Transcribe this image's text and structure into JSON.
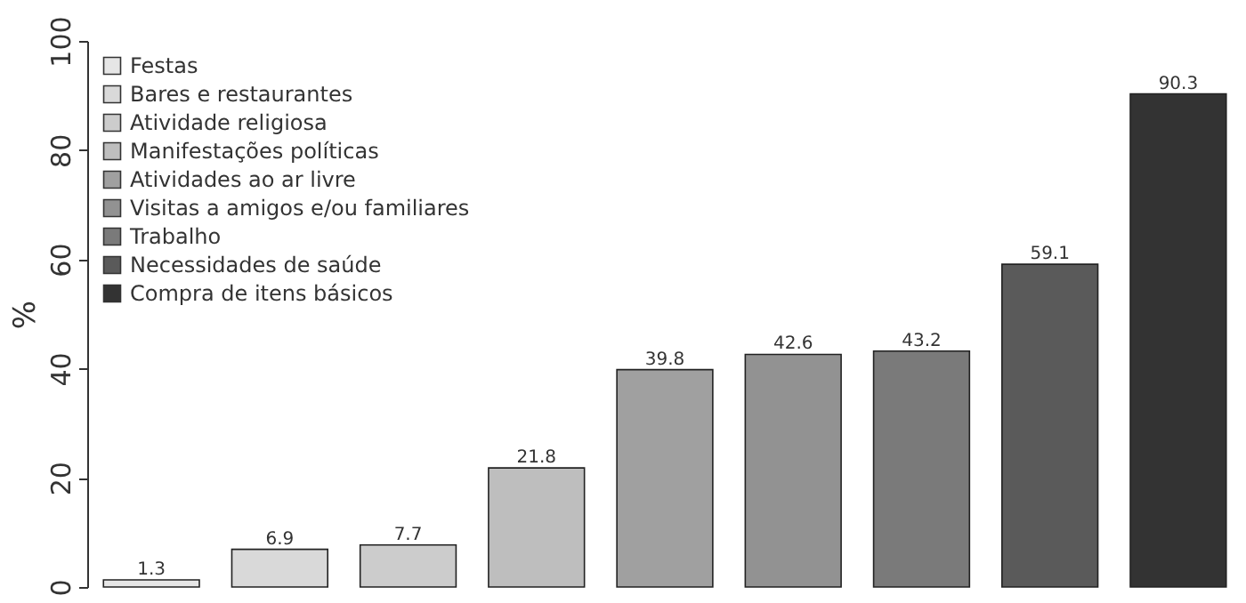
{
  "chart_data": {
    "type": "bar",
    "ylabel": "%",
    "categories": [
      null,
      null,
      null,
      null,
      null,
      null,
      null,
      null,
      null
    ],
    "series": [
      {
        "name": "Festas",
        "color": "#e6e6e6",
        "values": [
          1.3,
          null,
          null,
          null,
          null,
          null,
          null,
          null,
          null
        ]
      },
      {
        "name": "Bares e restaurantes",
        "color": "#d9d9d9",
        "values": [
          null,
          6.9,
          null,
          null,
          null,
          null,
          null,
          null,
          null
        ]
      },
      {
        "name": "Atividade religiosa",
        "color": "#cccccc",
        "values": [
          null,
          null,
          7.7,
          null,
          null,
          null,
          null,
          null,
          null
        ]
      },
      {
        "name": "Manifestações políticas",
        "color": "#bebebe",
        "values": [
          null,
          null,
          null,
          21.8,
          null,
          null,
          null,
          null,
          null
        ]
      },
      {
        "name": "Atividades ao ar livre",
        "color": "#a0a0a0",
        "values": [
          null,
          null,
          null,
          null,
          39.8,
          null,
          null,
          null,
          null
        ]
      },
      {
        "name": "Visitas a amigos e/ou familiares",
        "color": "#929292",
        "values": [
          null,
          null,
          null,
          null,
          null,
          42.6,
          null,
          null,
          null
        ]
      },
      {
        "name": "Trabalho",
        "color": "#7a7a7a",
        "values": [
          null,
          null,
          null,
          null,
          null,
          null,
          43.2,
          null,
          null
        ]
      },
      {
        "name": "Necessidades de saúde",
        "color": "#5a5a5a",
        "values": [
          null,
          null,
          null,
          null,
          null,
          null,
          null,
          59.1,
          null
        ]
      },
      {
        "name": "Compra de itens básicos",
        "color": "#333333",
        "values": [
          null,
          null,
          null,
          null,
          null,
          null,
          null,
          null,
          90.3
        ]
      }
    ],
    "ylim": [
      0,
      100
    ],
    "yticks": [
      0,
      20,
      40,
      60,
      80,
      100
    ],
    "stacked": true,
    "data_labels": true,
    "legend": "top left",
    "tick_labels": "y",
    "grid": false
  }
}
